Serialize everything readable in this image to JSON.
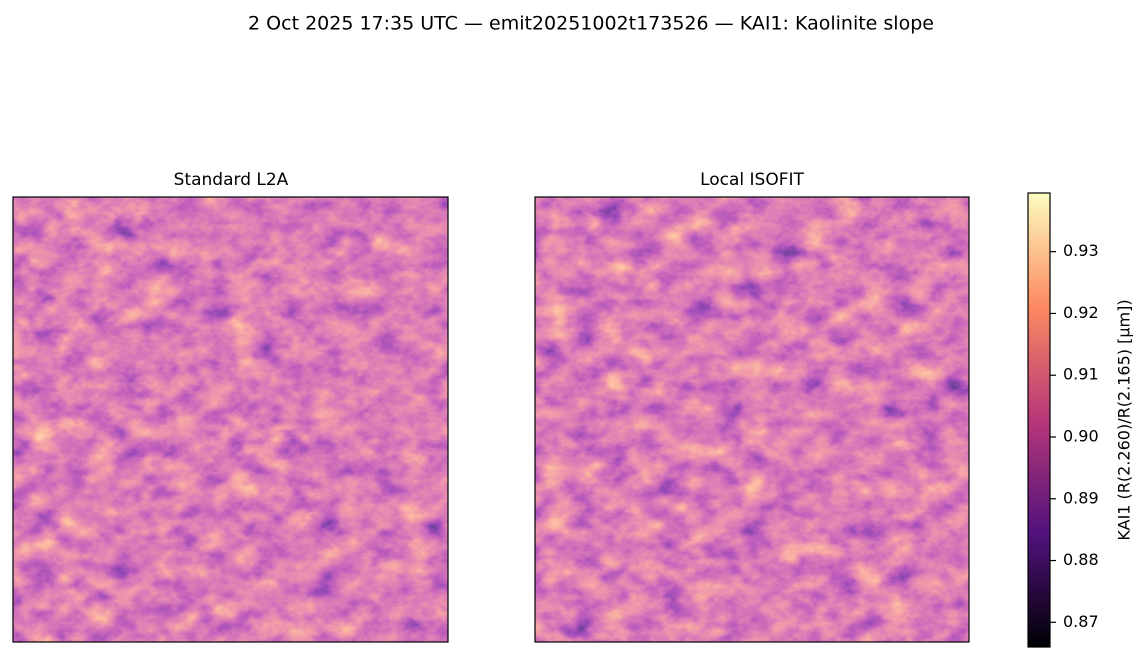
{
  "title": "2 Oct 2025 17:35 UTC — emit20251002t173526 — KAI1: Kaolinite slope",
  "panels": [
    {
      "title": "Standard L2A"
    },
    {
      "title": "Local ISOFIT"
    }
  ],
  "colorbar": {
    "label": "KAI1  (R(2.260)/R(2.165)  [μm])",
    "lim": [
      0.866,
      0.9395
    ],
    "ticks": [
      0.87,
      0.88,
      0.89,
      {
        "value": 0.9,
        "label": "0.90"
      },
      0.91,
      0.92,
      0.93
    ]
  }
}
